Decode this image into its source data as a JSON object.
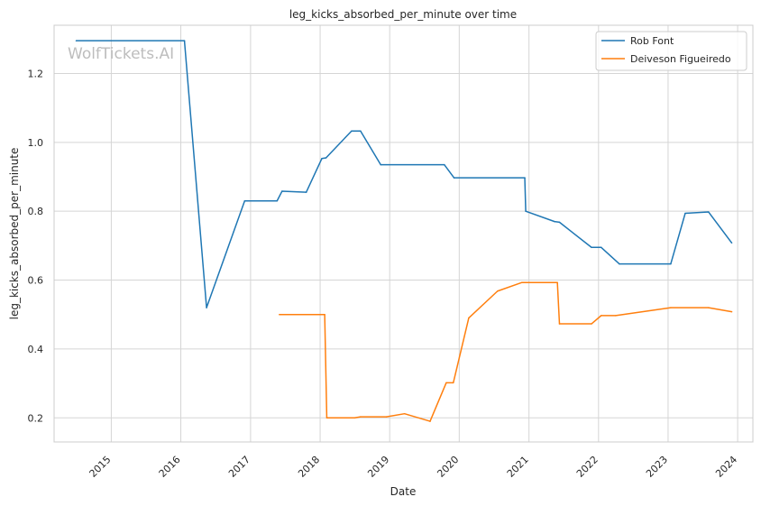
{
  "chart_data": {
    "type": "line",
    "title": "leg_kicks_absorbed_per_minute over time",
    "xlabel": "Date",
    "ylabel": "leg_kicks_absorbed_per_minute",
    "watermark": "WolfTickets.AI",
    "xlim": [
      "2014-03-07",
      "2024-03-21"
    ],
    "ylim": [
      0.13,
      1.34
    ],
    "x_ticks": [
      "2015",
      "2016",
      "2017",
      "2018",
      "2019",
      "2020",
      "2021",
      "2022",
      "2023",
      "2024"
    ],
    "y_ticks": [
      "0.2",
      "0.4",
      "0.6",
      "0.8",
      "1.0",
      "1.2"
    ],
    "grid": true,
    "legend_position": "top-right",
    "colors": {
      "Rob Font": "#1f77b4",
      "Deiveson Figueiredo": "#ff7f0e",
      "grid": "#d5d5d5",
      "spine": "#cccccc"
    },
    "series": [
      {
        "name": "Rob Font",
        "points": [
          [
            "2014-07-01",
            1.295
          ],
          [
            "2016-01-20",
            1.295
          ],
          [
            "2016-05-15",
            0.52
          ],
          [
            "2016-12-01",
            0.83
          ],
          [
            "2017-05-20",
            0.83
          ],
          [
            "2017-06-15",
            0.858
          ],
          [
            "2017-10-20",
            0.855
          ],
          [
            "2018-01-10",
            0.953
          ],
          [
            "2018-02-01",
            0.955
          ],
          [
            "2018-06-15",
            1.033
          ],
          [
            "2018-08-01",
            1.033
          ],
          [
            "2018-11-15",
            0.935
          ],
          [
            "2019-10-15",
            0.935
          ],
          [
            "2019-12-05",
            0.897
          ],
          [
            "2020-12-10",
            0.897
          ],
          [
            "2020-12-15",
            0.8
          ],
          [
            "2021-05-15",
            0.77
          ],
          [
            "2021-06-10",
            0.768
          ],
          [
            "2021-11-25",
            0.695
          ],
          [
            "2022-01-15",
            0.695
          ],
          [
            "2022-04-20",
            0.647
          ],
          [
            "2023-01-15",
            0.647
          ],
          [
            "2023-04-01",
            0.794
          ],
          [
            "2023-08-01",
            0.798
          ],
          [
            "2023-12-01",
            0.708
          ]
        ]
      },
      {
        "name": "Deiveson Figueiredo",
        "points": [
          [
            "2017-06-01",
            0.5
          ],
          [
            "2018-01-25",
            0.5
          ],
          [
            "2018-02-05",
            0.2
          ],
          [
            "2018-07-01",
            0.2
          ],
          [
            "2018-08-01",
            0.203
          ],
          [
            "2018-12-15",
            0.203
          ],
          [
            "2019-03-20",
            0.212
          ],
          [
            "2019-08-01",
            0.19
          ],
          [
            "2019-10-25",
            0.302
          ],
          [
            "2019-12-01",
            0.302
          ],
          [
            "2020-02-20",
            0.49
          ],
          [
            "2020-07-20",
            0.568
          ],
          [
            "2020-11-25",
            0.593
          ],
          [
            "2021-05-30",
            0.593
          ],
          [
            "2021-06-10",
            0.473
          ],
          [
            "2021-11-25",
            0.473
          ],
          [
            "2022-01-15",
            0.497
          ],
          [
            "2022-04-01",
            0.497
          ],
          [
            "2023-01-15",
            0.52
          ],
          [
            "2023-08-01",
            0.52
          ],
          [
            "2023-12-01",
            0.508
          ]
        ]
      }
    ]
  }
}
